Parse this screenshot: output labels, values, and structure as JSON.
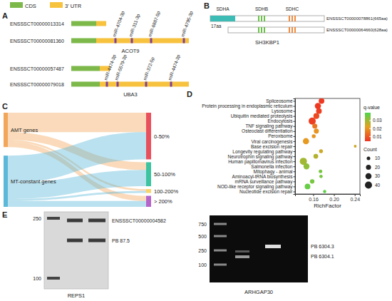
{
  "panel_labels": [
    "A",
    "B",
    "C",
    "D",
    "E"
  ],
  "panel_a": {
    "legend": [
      {
        "name": "CDS",
        "color": "#7cb94a"
      },
      {
        "name": "3' UTR",
        "color": "#f7c23e"
      }
    ],
    "mirna_color": "#7b3fa0",
    "genes": [
      {
        "name": "ACOT9",
        "transcripts": [
          {
            "id": "ENSSSCT00000013314",
            "mirnas": []
          },
          {
            "id": "ENSSSCT00000081360",
            "mirnas": [
              "miR-4704-3p",
              "miR-311-3p",
              "miR-6887-5p",
              "miR-4795-3p"
            ]
          }
        ]
      },
      {
        "name": "UBA3",
        "transcripts": [
          {
            "id": "ENSSSCT00000057487",
            "mirnas": []
          },
          {
            "id": "ENSSSCT00000079018",
            "mirnas": [
              "miR-4474-3p",
              "miR-5579-3p",
              "miR-372-5p",
              "miR-4474-3p"
            ]
          }
        ]
      }
    ]
  },
  "panel_b": {
    "gene": "SH3KBP1",
    "domains": [
      {
        "name": "SDHA",
        "color": "#3cbcb4"
      },
      {
        "name": "SDHB",
        "color": "#6cc04a"
      },
      {
        "name": "SDHC",
        "color": "#f08a3c"
      }
    ],
    "transcripts": [
      "ENSSSCT00000078861(665aa)",
      "ENSSSCT00000064660(628aa)"
    ],
    "offset_label": "17aa"
  },
  "panel_c": {
    "sources": [
      {
        "name": "AMT genes",
        "color": "#f2a65a"
      },
      {
        "name": "MT-constant genes",
        "color": "#5bb8d8"
      }
    ],
    "targets": [
      {
        "name": "0-50%",
        "color": "#e8505b"
      },
      {
        "name": "50-100%",
        "color": "#3cc3a0"
      },
      {
        "name": "100-200%",
        "color": "#f7d36b"
      },
      {
        "name": "> 200%",
        "color": "#b565c9"
      }
    ],
    "flows": [
      [
        30,
        12,
        3,
        8
      ],
      [
        42,
        25,
        3,
        9
      ]
    ]
  },
  "chart_data": {
    "type": "scatter",
    "x_label": "RichFactor",
    "categories": [
      "Spliceosome",
      "Protein processing in endoplasmic reticulum",
      "Lysosome",
      "Ubiquitin mediated proteolysis",
      "Endocytosis",
      "TNF signaling pathway",
      "Osteoclast differentiation",
      "Peroxisome",
      "Viral carcinogenesis",
      "Base excision repair",
      "Longevity regulating pathway",
      "Neurotrophin signaling pathway",
      "Human papillomavirus infection",
      "Salmonella infection",
      "Mitophagy - animal",
      "Aminoacyl-tRNA biosynthesis",
      "mRNA surveillance pathway",
      "NOD-like receptor signaling pathway",
      "Nucleotide excision repair"
    ],
    "x": [
      0.176,
      0.169,
      0.171,
      0.166,
      0.158,
      0.163,
      0.166,
      0.161,
      0.146,
      0.241,
      0.175,
      0.165,
      0.141,
      0.147,
      0.174,
      0.175,
      0.158,
      0.149,
      0.182
    ],
    "q_values": [
      0.005,
      0.005,
      0.006,
      0.008,
      0.006,
      0.015,
      0.02,
      0.02,
      0.021,
      0.025,
      0.025,
      0.028,
      0.03,
      0.032,
      0.035,
      0.035,
      0.035,
      0.037,
      0.038
    ],
    "counts": [
      25,
      30,
      25,
      27,
      40,
      20,
      20,
      12,
      30,
      6,
      12,
      18,
      40,
      28,
      10,
      9,
      16,
      25,
      8
    ],
    "xlim": [
      0.125,
      0.25
    ],
    "xticks": [
      0.16,
      {
        "value": 0.2,
        "label": "0.20"
      },
      0.24
    ],
    "grid": false,
    "colorbar": {
      "title": "q-value",
      "range": [
        0.004,
        0.04
      ],
      "ticks": [
        0.01,
        0.02,
        0.03
      ]
    },
    "size_legend": {
      "title": "Count",
      "values": [
        10,
        20,
        30,
        40
      ]
    }
  },
  "panel_e": {
    "gels": [
      {
        "gene": "REPS1",
        "ladder": [
          250,
          100
        ],
        "bands": [
          "ENSSSCT00000004582",
          "PB 87.5"
        ]
      },
      {
        "gene": "ARHGAP30",
        "ladder": [
          750,
          500,
          250,
          100
        ],
        "bands": [
          "PB 6304.3",
          "PB 6304.1"
        ]
      }
    ]
  }
}
